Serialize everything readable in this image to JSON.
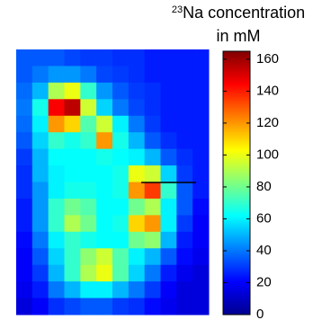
{
  "chart_data": {
    "type": "heatmap",
    "title_superscript": "23",
    "title_lines": [
      "Na concentration",
      "in mM"
    ],
    "colormap": "jet",
    "clim": [
      0,
      165
    ],
    "cticks": [
      0,
      20,
      40,
      60,
      80,
      100,
      120,
      140,
      160
    ],
    "values": [
      [
        35,
        35,
        35,
        32,
        30,
        30,
        28,
        28,
        25,
        25,
        25,
        25
      ],
      [
        35,
        40,
        45,
        45,
        40,
        32,
        30,
        28,
        25,
        25,
        25,
        25
      ],
      [
        38,
        50,
        90,
        100,
        70,
        45,
        35,
        30,
        28,
        25,
        25,
        25
      ],
      [
        40,
        65,
        145,
        155,
        95,
        55,
        40,
        32,
        28,
        25,
        25,
        25
      ],
      [
        38,
        60,
        120,
        110,
        75,
        95,
        60,
        40,
        30,
        25,
        25,
        25
      ],
      [
        35,
        55,
        70,
        65,
        70,
        120,
        65,
        50,
        35,
        28,
        25,
        25
      ],
      [
        30,
        50,
        62,
        62,
        62,
        65,
        62,
        60,
        50,
        35,
        28,
        25
      ],
      [
        28,
        50,
        60,
        62,
        62,
        62,
        65,
        100,
        95,
        55,
        30,
        25
      ],
      [
        28,
        45,
        60,
        65,
        65,
        62,
        65,
        120,
        135,
        70,
        35,
        25
      ],
      [
        25,
        45,
        70,
        80,
        75,
        62,
        62,
        80,
        90,
        60,
        35,
        22
      ],
      [
        25,
        45,
        70,
        90,
        80,
        62,
        65,
        110,
        120,
        60,
        30,
        20
      ],
      [
        22,
        40,
        60,
        70,
        65,
        62,
        62,
        80,
        85,
        50,
        25,
        20
      ],
      [
        20,
        35,
        55,
        70,
        85,
        95,
        75,
        60,
        50,
        35,
        22,
        18
      ],
      [
        20,
        30,
        50,
        70,
        90,
        100,
        75,
        55,
        40,
        25,
        18,
        15
      ],
      [
        18,
        25,
        40,
        50,
        60,
        60,
        50,
        40,
        30,
        20,
        15,
        15
      ],
      [
        15,
        20,
        28,
        32,
        35,
        35,
        30,
        28,
        22,
        18,
        15,
        15
      ]
    ]
  }
}
